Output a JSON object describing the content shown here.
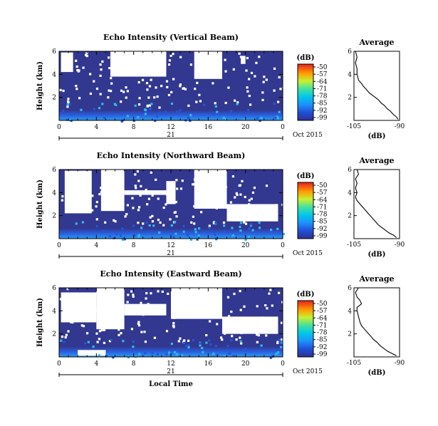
{
  "figure": {
    "date_label": "Oct 2015",
    "day_label": "21",
    "xlabel": "Local Time",
    "ylabel": "Height (km)",
    "colorbar_unit": "(dB)",
    "average_title": "Average",
    "average_xlabel": "(dB)"
  },
  "chart_data": [
    {
      "type": "heatmap",
      "title": "Echo Intensity (Vertical Beam)",
      "ylabel": "Height (km)",
      "xlabel": "",
      "x_ticks": [
        "0",
        "4",
        "8",
        "12",
        "16",
        "20",
        "0"
      ],
      "y_ticks": [
        "6",
        "4",
        "2"
      ],
      "xlim": [
        0,
        24
      ],
      "ylim": [
        0,
        6
      ],
      "colorbar": {
        "label": "(dB)",
        "ticks": [
          "-50",
          "-57",
          "-64",
          "-71",
          "-78",
          "-85",
          "-92",
          "-99"
        ],
        "range": [
          -99,
          -50
        ]
      },
      "description_values": {
        "background_dB": -96,
        "near_surface_dB": -88
      },
      "blank_regions": [
        {
          "x": [
            0.2,
            1.5
          ],
          "y": [
            4.2,
            5.9
          ]
        },
        {
          "x": [
            5.5,
            11.5
          ],
          "y": [
            3.8,
            6.0
          ]
        },
        {
          "x": [
            14.5,
            17.5
          ],
          "y": [
            3.6,
            6.0
          ]
        },
        {
          "x": [
            19.5,
            20.0
          ],
          "y": [
            4.9,
            5.6
          ]
        }
      ]
    },
    {
      "type": "heatmap",
      "title": "Echo Intensity (Northward Beam)",
      "ylabel": "Height (km)",
      "xlabel": "",
      "x_ticks": [
        "0",
        "4",
        "8",
        "12",
        "16",
        "20",
        "0"
      ],
      "y_ticks": [
        "6",
        "4",
        "2"
      ],
      "xlim": [
        0,
        24
      ],
      "ylim": [
        0,
        6
      ],
      "colorbar": {
        "label": "(dB)",
        "ticks": [
          "-50",
          "-57",
          "-64",
          "-71",
          "-78",
          "-85",
          "-92",
          "-99"
        ],
        "range": [
          -99,
          -50
        ]
      },
      "description_values": {
        "background_dB": -96,
        "near_surface_dB": -87
      },
      "blank_regions": [
        {
          "x": [
            0.6,
            3.5
          ],
          "y": [
            2.2,
            5.9
          ]
        },
        {
          "x": [
            4.5,
            7.0
          ],
          "y": [
            2.4,
            6.0
          ]
        },
        {
          "x": [
            7.0,
            11.5
          ],
          "y": [
            3.8,
            4.2
          ]
        },
        {
          "x": [
            11.5,
            12.5
          ],
          "y": [
            3.0,
            5.0
          ]
        },
        {
          "x": [
            14.5,
            18.0
          ],
          "y": [
            2.6,
            6.0
          ]
        },
        {
          "x": [
            18.0,
            23.5
          ],
          "y": [
            1.5,
            3.0
          ]
        }
      ]
    },
    {
      "type": "heatmap",
      "title": "Echo Intensity (Eastward Beam)",
      "ylabel": "Height (km)",
      "xlabel": "Local Time",
      "x_ticks": [
        "0",
        "4",
        "8",
        "12",
        "16",
        "20",
        "0"
      ],
      "y_ticks": [
        "6",
        "4",
        "2"
      ],
      "xlim": [
        0,
        24
      ],
      "ylim": [
        0,
        6
      ],
      "colorbar": {
        "label": "(dB)",
        "ticks": [
          "-50",
          "-57",
          "-64",
          "-71",
          "-78",
          "-85",
          "-92",
          "-99"
        ],
        "range": [
          -99,
          -50
        ]
      },
      "description_values": {
        "background_dB": -96,
        "near_surface_dB": -86
      },
      "blank_regions": [
        {
          "x": [
            0.2,
            4.0
          ],
          "y": [
            3.0,
            5.6
          ]
        },
        {
          "x": [
            4.0,
            7.0
          ],
          "y": [
            2.4,
            6.0
          ]
        },
        {
          "x": [
            7.0,
            11.5
          ],
          "y": [
            3.6,
            4.6
          ]
        },
        {
          "x": [
            12.0,
            17.5
          ],
          "y": [
            3.3,
            6.0
          ]
        },
        {
          "x": [
            17.5,
            23.5
          ],
          "y": [
            2.0,
            3.5
          ]
        },
        {
          "x": [
            2.0,
            5.0
          ],
          "y": [
            0.1,
            0.6
          ]
        }
      ]
    },
    {
      "type": "line",
      "title": "Average",
      "xlabel": "(dB)",
      "xlim": [
        -105,
        -90
      ],
      "ylim": [
        0,
        6
      ],
      "x_ticks": [
        "-105",
        "-90"
      ],
      "y_ticks": [
        "6",
        "4",
        "2"
      ],
      "x": [
        -104.5,
        -104,
        -104.5,
        -104,
        -104,
        -103.5,
        -102.5,
        -102,
        -101,
        -100,
        -99,
        -98,
        -97,
        -96,
        -95,
        -94,
        -93,
        -92,
        -91,
        -90.5
      ],
      "y": [
        6.0,
        5.5,
        5.0,
        4.5,
        4.0,
        3.5,
        3.2,
        3.0,
        2.7,
        2.4,
        2.2,
        2.0,
        1.8,
        1.5,
        1.3,
        1.0,
        0.8,
        0.5,
        0.3,
        0.1
      ]
    },
    {
      "type": "line",
      "title": "Average",
      "xlabel": "(dB)",
      "xlim": [
        -105,
        -90
      ],
      "ylim": [
        0,
        6
      ],
      "x_ticks": [
        "-105",
        "-90"
      ],
      "y_ticks": [
        "6",
        "4",
        "2"
      ],
      "x": [
        -104,
        -103.5,
        -104.5,
        -104,
        -104.5,
        -104,
        -104.5,
        -104,
        -103,
        -102,
        -101,
        -100,
        -99,
        -98,
        -97,
        -96,
        -95,
        -93.5,
        -92,
        -91
      ],
      "y": [
        6.0,
        5.6,
        5.2,
        4.8,
        4.4,
        4.0,
        3.6,
        3.3,
        3.0,
        2.7,
        2.4,
        2.1,
        1.8,
        1.5,
        1.2,
        1.0,
        0.8,
        0.5,
        0.3,
        0.1
      ]
    },
    {
      "type": "line",
      "title": "Average",
      "xlabel": "(dB)",
      "xlim": [
        -105,
        -90
      ],
      "ylim": [
        0,
        6
      ],
      "x_ticks": [
        "-105",
        "-90"
      ],
      "y_ticks": [
        "6",
        "4",
        "2"
      ],
      "x": [
        -103.5,
        -104.5,
        -104,
        -103,
        -102.5,
        -104,
        -104,
        -103.5,
        -103,
        -102.5,
        -101.5,
        -100.5,
        -99.5,
        -98.5,
        -97.5,
        -96.5,
        -95.5,
        -94,
        -92.5,
        -91
      ],
      "y": [
        6.0,
        5.6,
        5.2,
        4.9,
        4.6,
        4.3,
        4.0,
        3.5,
        3.0,
        2.7,
        2.4,
        2.1,
        1.8,
        1.5,
        1.3,
        1.0,
        0.8,
        0.5,
        0.3,
        0.1
      ]
    }
  ]
}
